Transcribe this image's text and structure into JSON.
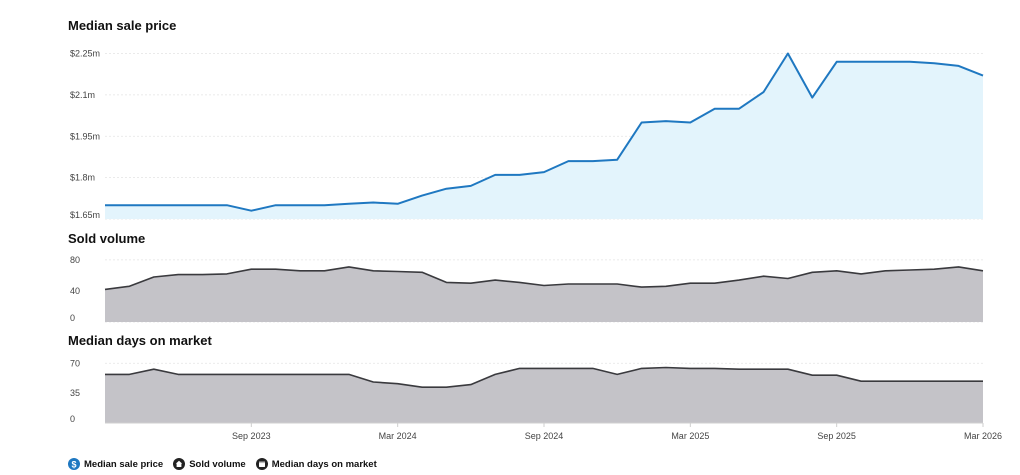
{
  "colors": {
    "price_line": "#1f78c1",
    "price_fill": "#e3f4fc",
    "volume_line": "#3a3a3e",
    "volume_fill": "#c4c3c8",
    "grid": "#e3e3e3",
    "axis": "#cfcfcf"
  },
  "legend": {
    "items": [
      {
        "label": "Median sale price",
        "icon": "dollar-circle-icon",
        "color": "#1f78c1"
      },
      {
        "label": "Sold volume",
        "icon": "house-icon",
        "color": "#222222"
      },
      {
        "label": "Median days on market",
        "icon": "calendar-icon",
        "color": "#222222"
      }
    ]
  },
  "chart_data": [
    {
      "type": "area",
      "title": "Median sale price",
      "x": [
        "2023-03",
        "2023-04",
        "2023-05",
        "2023-06",
        "2023-07",
        "2023-08",
        "2023-09",
        "2023-10",
        "2023-11",
        "2023-12",
        "2024-01",
        "2024-02",
        "2024-03",
        "2024-04",
        "2024-05",
        "2024-06",
        "2024-07",
        "2024-08",
        "2024-09",
        "2024-10",
        "2024-11",
        "2024-12",
        "2025-01",
        "2025-02",
        "2025-03",
        "2025-04",
        "2025-05",
        "2025-06",
        "2025-07",
        "2025-08",
        "2025-09",
        "2025-10",
        "2025-11",
        "2025-12",
        "2026-01",
        "2026-02",
        "2026-03"
      ],
      "values": [
        1.7,
        1.7,
        1.7,
        1.7,
        1.7,
        1.7,
        1.68,
        1.7,
        1.7,
        1.7,
        1.705,
        1.71,
        1.705,
        1.735,
        1.76,
        1.77,
        1.81,
        1.81,
        1.82,
        1.86,
        1.86,
        1.865,
        2.0,
        2.005,
        2.0,
        2.05,
        2.05,
        2.11,
        2.25,
        2.09,
        2.22,
        2.22,
        2.22,
        2.22,
        2.215,
        2.205,
        2.17
      ],
      "yticks": [
        1.65,
        1.8,
        1.95,
        2.1,
        2.25
      ],
      "ytick_labels": [
        "$1.65m",
        "$1.8m",
        "$1.95m",
        "$2.1m",
        "$2.25m"
      ],
      "ylim": [
        1.65,
        2.27
      ]
    },
    {
      "type": "area",
      "title": "Sold volume",
      "x": [
        "2023-03",
        "2023-04",
        "2023-05",
        "2023-06",
        "2023-07",
        "2023-08",
        "2023-09",
        "2023-10",
        "2023-11",
        "2023-12",
        "2024-01",
        "2024-02",
        "2024-03",
        "2024-04",
        "2024-05",
        "2024-06",
        "2024-07",
        "2024-08",
        "2024-09",
        "2024-10",
        "2024-11",
        "2024-12",
        "2025-01",
        "2025-02",
        "2025-03",
        "2025-04",
        "2025-05",
        "2025-06",
        "2025-07",
        "2025-08",
        "2025-09",
        "2025-10",
        "2025-11",
        "2025-12",
        "2026-01",
        "2026-02",
        "2026-03"
      ],
      "values": [
        42,
        46,
        58,
        61,
        61,
        62,
        68,
        68,
        66,
        66,
        71,
        66,
        65,
        64,
        51,
        50,
        54,
        51,
        47,
        49,
        49,
        49,
        45,
        46,
        50,
        50,
        54,
        59,
        56,
        64,
        66,
        62,
        66,
        67,
        68,
        71,
        66
      ],
      "yticks": [
        0,
        40,
        80
      ],
      "ytick_labels": [
        "0",
        "40",
        "80"
      ],
      "ylim": [
        0,
        85
      ]
    },
    {
      "type": "area",
      "title": "Median days on market",
      "x": [
        "2023-03",
        "2023-04",
        "2023-05",
        "2023-06",
        "2023-07",
        "2023-08",
        "2023-09",
        "2023-10",
        "2023-11",
        "2023-12",
        "2024-01",
        "2024-02",
        "2024-03",
        "2024-04",
        "2024-05",
        "2024-06",
        "2024-07",
        "2024-08",
        "2024-09",
        "2024-10",
        "2024-11",
        "2024-12",
        "2025-01",
        "2025-02",
        "2025-03",
        "2025-04",
        "2025-05",
        "2025-06",
        "2025-07",
        "2025-08",
        "2025-09",
        "2025-10",
        "2025-11",
        "2025-12",
        "2026-01",
        "2026-02",
        "2026-03"
      ],
      "values": [
        57,
        57,
        63,
        57,
        57,
        57,
        57,
        57,
        57,
        57,
        57,
        48,
        46,
        42,
        42,
        45,
        57,
        64,
        64,
        64,
        64,
        57,
        64,
        65,
        64,
        64,
        63,
        63,
        63,
        56,
        56,
        49,
        49,
        49,
        49,
        49,
        49
      ],
      "yticks": [
        0,
        35,
        70
      ],
      "ytick_labels": [
        "0",
        "35",
        "70"
      ],
      "ylim": [
        0,
        75
      ]
    }
  ],
  "x_axis": {
    "ticks": [
      {
        "at": "2023-09",
        "label": "Sep 2023"
      },
      {
        "at": "2024-03",
        "label": "Mar 2024"
      },
      {
        "at": "2024-09",
        "label": "Sep 2024"
      },
      {
        "at": "2025-03",
        "label": "Mar 2025"
      },
      {
        "at": "2025-09",
        "label": "Sep 2025"
      },
      {
        "at": "2026-03",
        "label": "Mar 2026"
      }
    ]
  }
}
